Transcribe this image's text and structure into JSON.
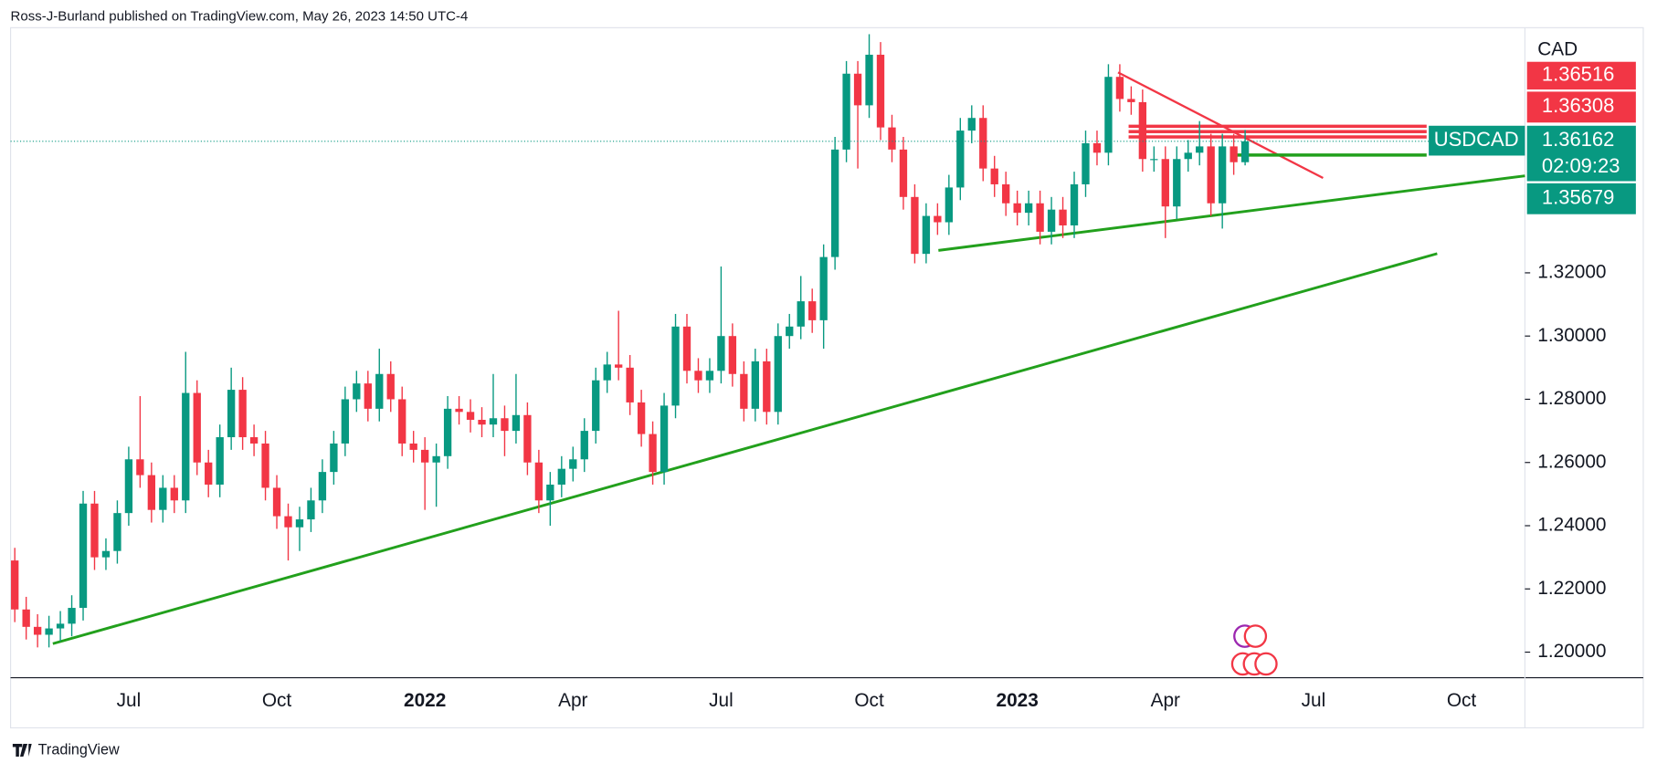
{
  "chart_data": {
    "type": "candlestick",
    "title": "Ross-J-Burland published on TradingView.com, May 26, 2023 14:50 UTC-4",
    "symbol": "USDCAD",
    "currency": "CAD",
    "countdown": "02:09:23",
    "brand": "TradingView",
    "up_color": "#089981",
    "down_color": "#f23645",
    "grid": false,
    "categories": [
      null,
      null,
      null,
      null,
      null,
      null,
      null,
      null,
      null,
      null,
      "Jul",
      null,
      null,
      null,
      null,
      null,
      null,
      null,
      null,
      null,
      null,
      null,
      null,
      "Oct",
      null,
      null,
      null,
      null,
      null,
      null,
      null,
      null,
      null,
      null,
      null,
      null,
      "2022",
      null,
      null,
      null,
      null,
      null,
      null,
      null,
      null,
      null,
      null,
      null,
      null,
      "Apr",
      null,
      null,
      null,
      null,
      null,
      null,
      null,
      null,
      null,
      null,
      null,
      null,
      "Jul",
      null,
      null,
      null,
      null,
      null,
      null,
      null,
      null,
      null,
      null,
      null,
      null,
      "Oct",
      null,
      null,
      null,
      null,
      null,
      null,
      null,
      null,
      null,
      null,
      null,
      null,
      "2023",
      null,
      null,
      null,
      null,
      null,
      null,
      null,
      null,
      null,
      null,
      null,
      null,
      "Apr",
      null,
      null,
      null,
      null,
      null,
      null,
      null,
      null,
      null,
      null,
      null,
      null,
      "Jul",
      null,
      null,
      null,
      null,
      null,
      null,
      null,
      null,
      null,
      null,
      null,
      null,
      "Oct",
      null,
      null,
      null,
      null,
      null
    ],
    "open": [
      1.229,
      1.2135,
      1.208,
      1.2055,
      1.2075,
      1.209,
      1.214,
      1.247,
      1.23,
      1.232,
      1.244,
      1.261,
      1.256,
      1.245,
      1.252,
      1.248,
      1.282,
      1.26,
      1.253,
      1.268,
      1.283,
      1.268,
      1.266,
      1.252,
      1.243,
      1.2395,
      1.242,
      1.248,
      1.257,
      1.266,
      1.28,
      1.285,
      1.277,
      1.288,
      1.28,
      1.266,
      1.264,
      1.26,
      1.262,
      1.277,
      1.276,
      1.2735,
      1.272,
      1.274,
      1.27,
      1.275,
      1.26,
      1.248,
      1.253,
      1.258,
      1.261,
      1.27,
      1.286,
      1.291,
      1.29,
      1.279,
      1.269,
      1.257,
      1.278,
      1.303,
      1.289,
      1.286,
      1.289,
      1.3,
      1.288,
      1.277,
      1.292,
      1.276,
      1.3,
      1.303,
      1.311,
      1.305,
      1.325,
      1.359,
      1.383,
      1.373,
      1.389,
      1.366,
      1.359,
      1.344,
      1.326,
      1.338,
      1.336,
      1.347,
      1.365,
      1.369,
      1.353,
      1.348,
      1.342,
      1.339,
      1.342,
      1.333,
      1.34,
      1.335,
      1.348,
      1.361,
      1.358,
      1.382,
      1.375,
      1.374,
      1.356,
      1.356,
      1.341,
      1.356,
      1.358,
      1.36,
      1.342,
      1.36,
      1.355,
      null,
      null,
      null,
      null,
      null,
      null,
      null,
      null,
      null,
      null,
      null,
      null,
      null,
      null,
      null,
      null,
      null,
      null,
      null,
      null,
      null,
      null,
      null,
      null
    ],
    "high": [
      1.233,
      1.2175,
      1.212,
      1.2115,
      1.213,
      1.218,
      1.251,
      1.251,
      1.236,
      1.248,
      1.265,
      1.281,
      1.26,
      1.256,
      1.256,
      1.295,
      1.286,
      1.264,
      1.272,
      1.29,
      1.287,
      1.272,
      1.27,
      1.256,
      1.247,
      1.246,
      1.252,
      1.261,
      1.27,
      1.284,
      1.289,
      1.289,
      1.296,
      1.292,
      1.284,
      1.27,
      1.268,
      1.266,
      1.281,
      1.281,
      1.28,
      1.2775,
      1.288,
      1.278,
      1.288,
      1.279,
      1.264,
      1.257,
      1.262,
      1.265,
      1.274,
      1.29,
      1.295,
      1.308,
      1.294,
      1.283,
      1.273,
      1.282,
      1.307,
      1.307,
      1.293,
      1.293,
      1.322,
      1.304,
      1.292,
      1.296,
      1.296,
      1.304,
      1.307,
      1.319,
      1.315,
      1.329,
      1.363,
      1.387,
      1.387,
      1.3955,
      1.393,
      1.37,
      1.363,
      1.348,
      1.342,
      1.342,
      1.351,
      1.369,
      1.373,
      1.373,
      1.357,
      1.352,
      1.346,
      1.346,
      1.346,
      1.344,
      1.344,
      1.352,
      1.365,
      1.365,
      1.386,
      1.386,
      1.379,
      1.378,
      1.36,
      1.36,
      1.36,
      1.362,
      1.368,
      1.364,
      1.364,
      1.364,
      1.3652,
      null,
      null,
      null,
      null,
      null,
      null,
      null,
      null,
      null,
      null,
      null,
      null,
      null,
      null,
      null,
      null,
      null,
      null,
      null,
      null,
      null,
      null,
      null,
      null
    ],
    "low": [
      1.2095,
      1.204,
      1.2015,
      1.2015,
      1.2035,
      1.205,
      1.21,
      1.226,
      1.226,
      1.228,
      1.24,
      1.252,
      1.241,
      1.241,
      1.244,
      1.244,
      1.256,
      1.249,
      1.249,
      1.264,
      1.264,
      1.262,
      1.248,
      1.239,
      1.229,
      1.232,
      1.238,
      1.244,
      1.253,
      1.262,
      1.276,
      1.273,
      1.273,
      1.276,
      1.262,
      1.26,
      1.245,
      1.246,
      1.258,
      1.272,
      1.2695,
      1.268,
      1.268,
      1.262,
      1.266,
      1.256,
      1.244,
      1.24,
      1.249,
      1.254,
      1.257,
      1.266,
      1.282,
      1.286,
      1.275,
      1.265,
      1.253,
      1.253,
      1.274,
      1.285,
      1.282,
      1.282,
      1.285,
      1.284,
      1.273,
      1.273,
      1.272,
      1.272,
      1.296,
      1.299,
      1.301,
      1.296,
      1.321,
      1.355,
      1.353,
      1.369,
      1.362,
      1.355,
      1.34,
      1.323,
      1.323,
      1.332,
      1.332,
      1.343,
      1.361,
      1.349,
      1.344,
      1.338,
      1.335,
      1.335,
      1.329,
      1.329,
      1.331,
      1.331,
      1.344,
      1.354,
      1.354,
      1.371,
      1.37,
      1.352,
      1.352,
      1.331,
      1.337,
      1.352,
      1.354,
      1.338,
      1.334,
      1.351,
      1.354,
      null,
      null,
      null,
      null,
      null,
      null,
      null,
      null,
      null,
      null,
      null,
      null,
      null,
      null,
      null,
      null,
      null,
      null,
      null,
      null,
      null,
      null,
      null,
      null
    ],
    "close": [
      1.2135,
      1.208,
      1.2055,
      1.2075,
      1.209,
      1.214,
      1.247,
      1.23,
      1.232,
      1.244,
      1.261,
      1.256,
      1.245,
      1.252,
      1.248,
      1.282,
      1.26,
      1.253,
      1.268,
      1.283,
      1.268,
      1.266,
      1.252,
      1.243,
      1.2395,
      1.242,
      1.248,
      1.257,
      1.266,
      1.28,
      1.285,
      1.277,
      1.288,
      1.28,
      1.266,
      1.264,
      1.26,
      1.262,
      1.277,
      1.276,
      1.2735,
      1.272,
      1.274,
      1.27,
      1.275,
      1.26,
      1.248,
      1.253,
      1.258,
      1.261,
      1.27,
      1.286,
      1.291,
      1.29,
      1.279,
      1.269,
      1.257,
      1.278,
      1.303,
      1.289,
      1.286,
      1.289,
      1.3,
      1.288,
      1.277,
      1.292,
      1.276,
      1.3,
      1.303,
      1.311,
      1.305,
      1.325,
      1.359,
      1.383,
      1.373,
      1.389,
      1.366,
      1.359,
      1.344,
      1.326,
      1.338,
      1.336,
      1.347,
      1.365,
      1.369,
      1.353,
      1.348,
      1.342,
      1.339,
      1.342,
      1.333,
      1.34,
      1.335,
      1.348,
      1.361,
      1.358,
      1.382,
      1.375,
      1.374,
      1.356,
      1.356,
      1.341,
      1.356,
      1.358,
      1.36,
      1.342,
      1.36,
      1.355,
      1.3616,
      null,
      null,
      null,
      null,
      null,
      null,
      null,
      null,
      null,
      null,
      null,
      null,
      null,
      null,
      null,
      null,
      null,
      null,
      null,
      null,
      null,
      null,
      null,
      null
    ],
    "ylim": [
      1.1919,
      1.3962
    ],
    "yticks": [
      {
        "value": 1.2,
        "label": "1.20000"
      },
      {
        "value": 1.22,
        "label": "1.22000"
      },
      {
        "value": 1.24,
        "label": "1.24000"
      },
      {
        "value": 1.26,
        "label": "1.26000"
      },
      {
        "value": 1.28,
        "label": "1.28000"
      },
      {
        "value": 1.3,
        "label": "1.30000"
      },
      {
        "value": 1.32,
        "label": "1.32000"
      }
    ],
    "price_levels": [
      {
        "value": 1.36516,
        "color": "#f23645"
      },
      {
        "value": 1.36308,
        "color": "#f23645"
      },
      {
        "value": 1.36162,
        "color": "#089981"
      },
      {
        "value": 1.35679,
        "color": "#089981"
      }
    ]
  }
}
